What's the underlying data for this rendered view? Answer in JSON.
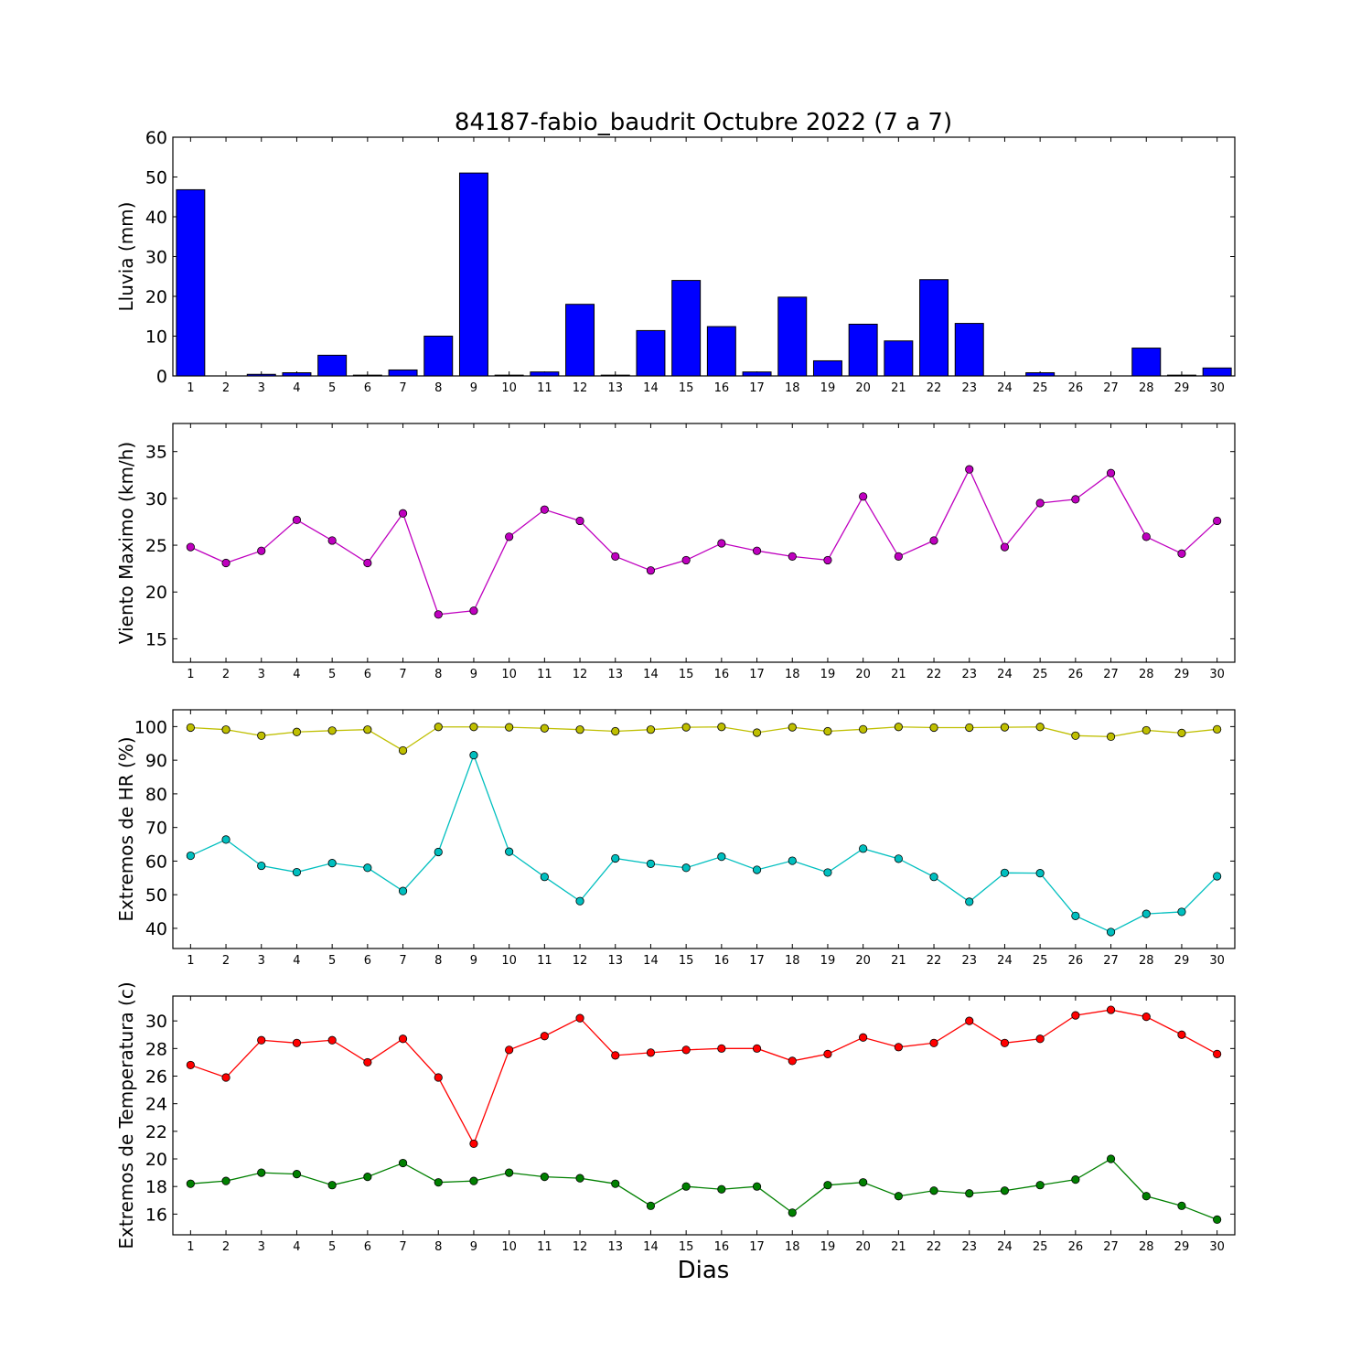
{
  "chart_data": {
    "title": "84187-fabio_baudrit Octubre 2022  (7 a 7)",
    "xlabel": "Dias",
    "x": [
      1,
      2,
      3,
      4,
      5,
      6,
      7,
      8,
      9,
      10,
      11,
      12,
      13,
      14,
      15,
      16,
      17,
      18,
      19,
      20,
      21,
      22,
      23,
      24,
      25,
      26,
      27,
      28,
      29,
      30
    ],
    "panels": [
      {
        "type": "bar",
        "ylabel": "Lluvia (mm)",
        "ylim": [
          0,
          60
        ],
        "yticks": [
          0,
          10,
          20,
          30,
          40,
          50,
          60
        ],
        "series": [
          {
            "color": "#0000ff",
            "values": [
              46.8,
              0,
              0.4,
              0.8,
              5.2,
              0.2,
              1.5,
              10,
              51,
              0.2,
              1,
              18,
              0.2,
              11.4,
              24,
              12.4,
              1,
              19.8,
              3.8,
              13,
              8.8,
              24.2,
              13.2,
              0,
              0.8,
              0,
              0,
              7,
              0.2,
              2
            ]
          }
        ]
      },
      {
        "type": "line",
        "ylabel": "Viento Maximo (km/h)",
        "ylim": [
          12.5,
          38
        ],
        "yticks": [
          15,
          20,
          25,
          30,
          35
        ],
        "series": [
          {
            "color": "#bf00bf",
            "values": [
              24.8,
              23.1,
              24.4,
              27.7,
              25.5,
              23.1,
              28.4,
              17.6,
              18,
              25.9,
              28.8,
              27.6,
              23.8,
              22.3,
              23.4,
              25.2,
              24.4,
              23.8,
              23.4,
              30.2,
              23.8,
              25.5,
              33.1,
              24.8,
              29.5,
              29.9,
              32.7,
              25.9,
              24.1,
              27.6
            ]
          }
        ]
      },
      {
        "type": "line",
        "ylabel": "Extremos de HR (%)",
        "ylim": [
          34,
          105
        ],
        "yticks": [
          40,
          50,
          60,
          70,
          80,
          90,
          100
        ],
        "series": [
          {
            "color": "#bfbf00",
            "values": [
              99.7,
              99.1,
              97.3,
              98.4,
              98.8,
              99.1,
              92.9,
              99.9,
              99.9,
              99.8,
              99.5,
              99.1,
              98.6,
              99.1,
              99.8,
              99.9,
              98.2,
              99.8,
              98.6,
              99.2,
              99.9,
              99.7,
              99.7,
              99.8,
              99.9,
              97.3,
              97,
              98.9,
              98.1,
              99.2
            ]
          },
          {
            "color": "#00bfbf",
            "values": [
              61.6,
              66.4,
              58.6,
              56.7,
              59.4,
              58,
              51.1,
              62.7,
              91.5,
              62.8,
              55.3,
              48.1,
              60.8,
              59.2,
              58,
              61.3,
              57.4,
              60.1,
              56.6,
              63.7,
              60.7,
              55.3,
              47.9,
              56.5,
              56.4,
              43.7,
              38.9,
              44.3,
              44.9,
              55.5
            ]
          }
        ]
      },
      {
        "type": "line",
        "ylabel": "Extremos de Temperatura (c)",
        "ylim": [
          14.5,
          31.8
        ],
        "yticks": [
          16,
          18,
          20,
          22,
          24,
          26,
          28,
          30
        ],
        "series": [
          {
            "color": "#ff0000",
            "values": [
              26.8,
              25.9,
              28.6,
              28.4,
              28.6,
              27,
              28.7,
              25.9,
              21.1,
              27.9,
              28.9,
              30.2,
              27.5,
              27.7,
              27.9,
              28,
              28,
              27.1,
              27.6,
              28.8,
              28.1,
              28.4,
              30,
              28.4,
              28.7,
              30.4,
              30.8,
              30.3,
              29,
              27.6
            ]
          },
          {
            "color": "#008000",
            "values": [
              18.2,
              18.4,
              19,
              18.9,
              18.1,
              18.7,
              19.7,
              18.3,
              18.4,
              19,
              18.7,
              18.6,
              18.2,
              16.6,
              18,
              17.8,
              18,
              16.1,
              18.1,
              18.3,
              17.3,
              17.7,
              17.5,
              17.7,
              18.1,
              18.5,
              20,
              17.3,
              16.6,
              15.6
            ]
          }
        ]
      }
    ]
  }
}
